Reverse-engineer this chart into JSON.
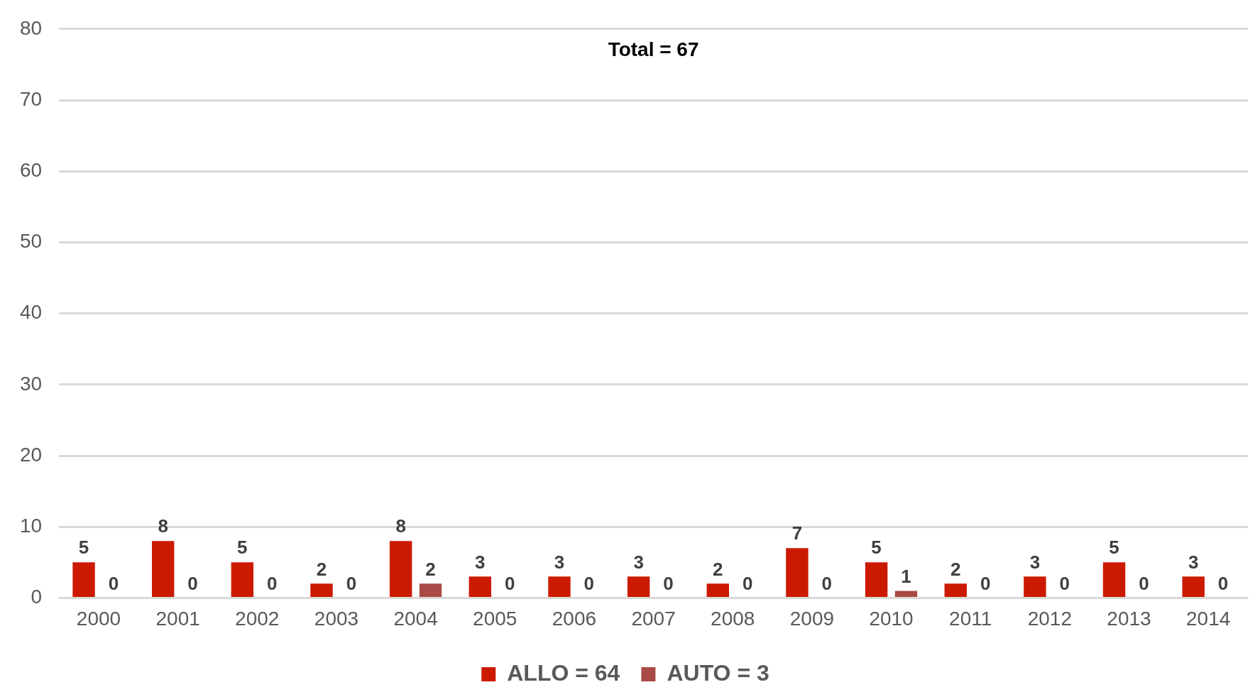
{
  "chart_data": {
    "type": "bar",
    "title": "Total = 67",
    "categories": [
      "2000",
      "2001",
      "2002",
      "2003",
      "2004",
      "2005",
      "2006",
      "2007",
      "2008",
      "2009",
      "2010",
      "2011",
      "2012",
      "2013",
      "2014"
    ],
    "series": [
      {
        "name": "ALLO = 64",
        "color": "#cc1a00",
        "values": [
          5,
          8,
          5,
          2,
          8,
          3,
          3,
          3,
          2,
          7,
          5,
          2,
          3,
          5,
          3
        ]
      },
      {
        "name": "AUTO = 3",
        "color": "#a84a45",
        "values": [
          0,
          0,
          0,
          0,
          2,
          0,
          0,
          0,
          0,
          0,
          1,
          0,
          0,
          0,
          0
        ]
      }
    ],
    "ylim": [
      0,
      80
    ],
    "yticks": [
      0,
      10,
      20,
      30,
      40,
      50,
      60,
      70,
      80
    ],
    "grid": "y",
    "legend": "bottom",
    "data_labels": true
  }
}
